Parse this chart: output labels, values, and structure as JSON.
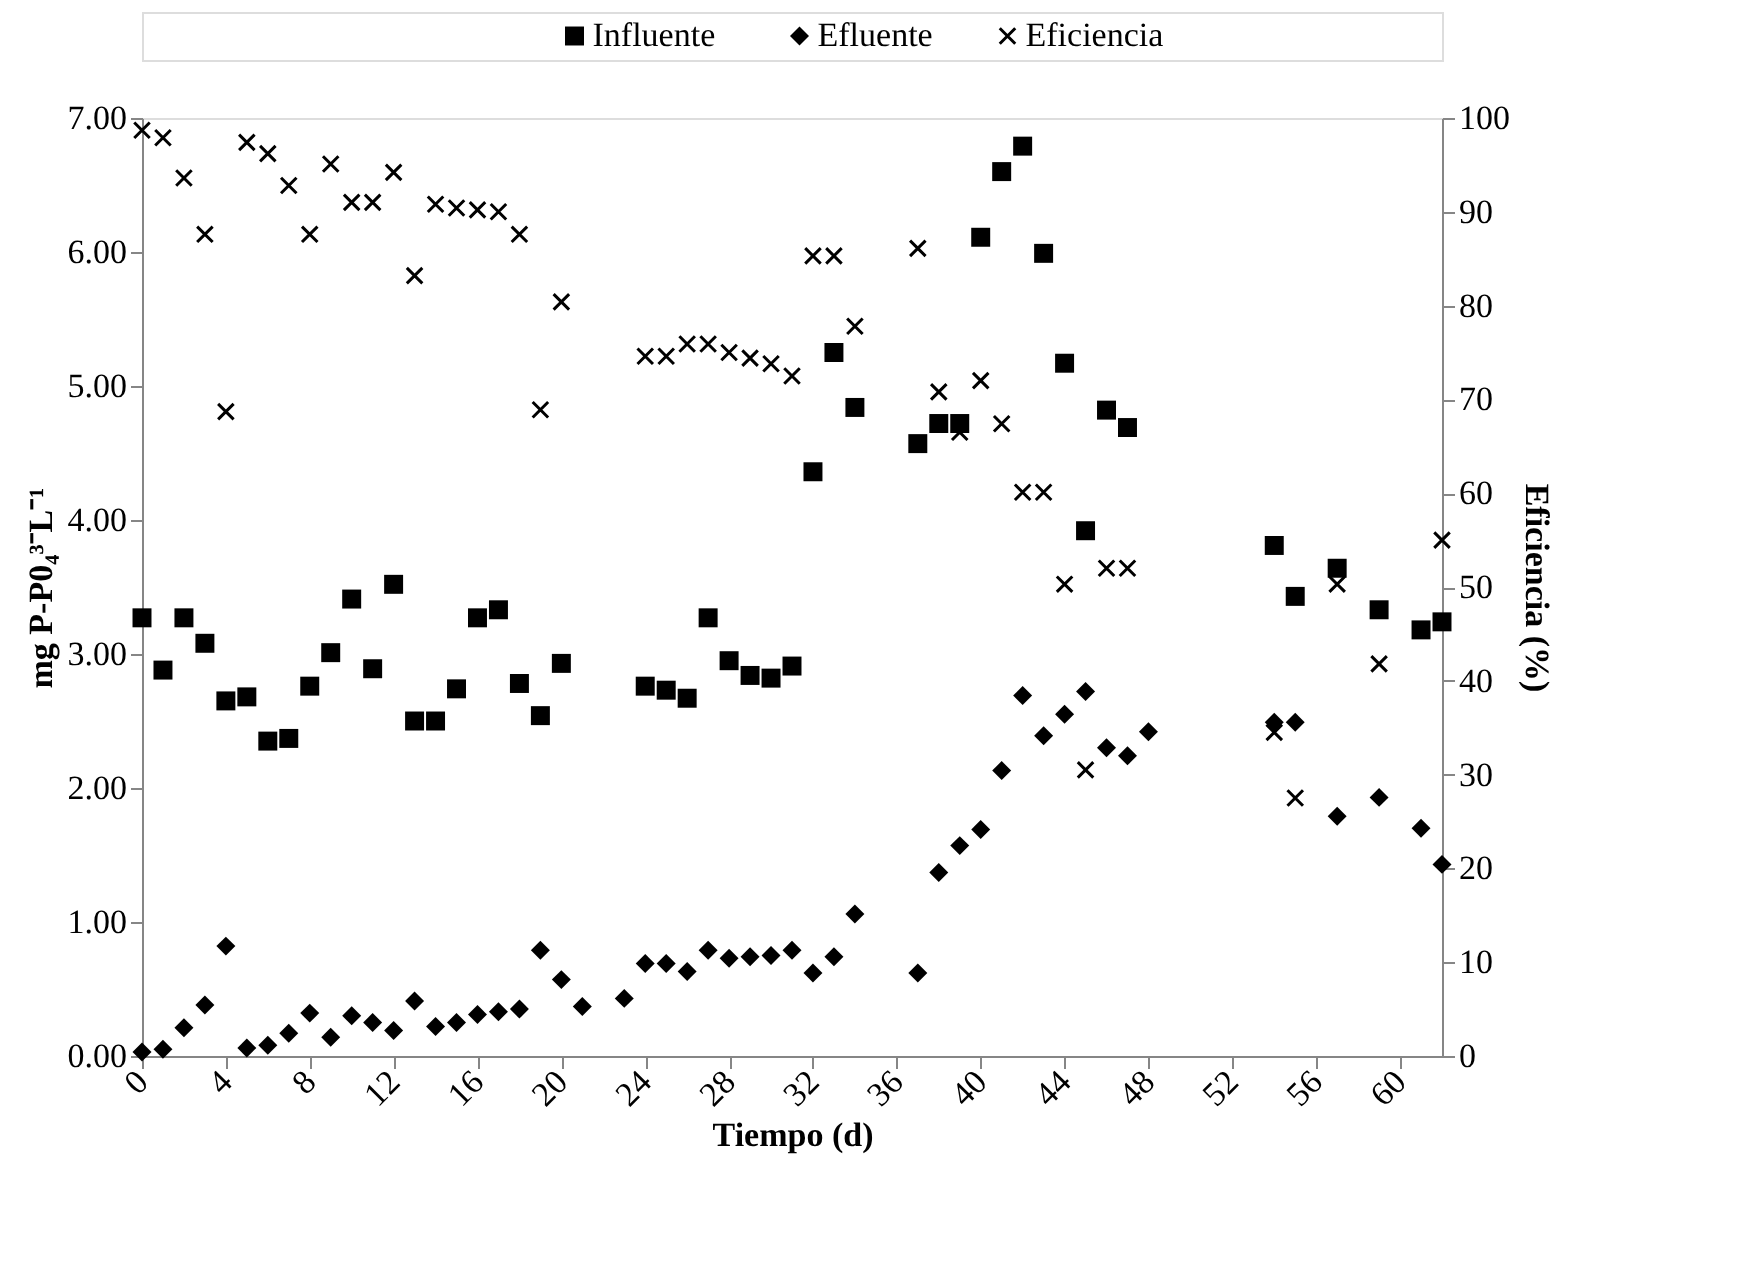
{
  "chart_data": {
    "type": "scatter",
    "xlabel": "Tiempo (d)",
    "ylabel": "mg P-P0₄³⁻L⁻¹",
    "y2label": "Eficiencia (%)",
    "xlim": [
      0,
      62
    ],
    "xticks": [
      0,
      4,
      8,
      12,
      16,
      20,
      24,
      28,
      32,
      36,
      40,
      44,
      48,
      52,
      56,
      60
    ],
    "ylim": [
      0,
      7
    ],
    "yticks": [
      {
        "value": 0,
        "label": "0.00"
      },
      {
        "value": 1,
        "label": "1.00"
      },
      {
        "value": 2,
        "label": "2.00"
      },
      {
        "value": 3,
        "label": "3.00"
      },
      {
        "value": 4,
        "label": "4.00"
      },
      {
        "value": 5,
        "label": "5.00"
      },
      {
        "value": 6,
        "label": "6.00"
      },
      {
        "value": 7,
        "label": "7.00"
      }
    ],
    "y2lim": [
      0,
      100
    ],
    "y2ticks": [
      0,
      10,
      20,
      30,
      40,
      50,
      60,
      70,
      80,
      90,
      100
    ],
    "grid": false,
    "legend": "top",
    "series": [
      {
        "name": "Influente",
        "color": "#000000",
        "marker": "square",
        "x": [
          0,
          1,
          2,
          3,
          4,
          5,
          6,
          7,
          8,
          9,
          10,
          11,
          12,
          13,
          14,
          15,
          16,
          17,
          18,
          19,
          20,
          24,
          25,
          26,
          27,
          28,
          29,
          30,
          31,
          32,
          33,
          34,
          37,
          38,
          39,
          40,
          41,
          42,
          43,
          44,
          45,
          46,
          47,
          54,
          55,
          57,
          59,
          61,
          62
        ],
        "values": [
          3.27,
          2.88,
          3.27,
          3.08,
          2.65,
          2.68,
          2.35,
          2.37,
          2.76,
          3.01,
          3.41,
          2.89,
          3.52,
          2.5,
          2.5,
          2.74,
          3.27,
          3.33,
          2.78,
          2.54,
          2.93,
          2.76,
          2.73,
          2.67,
          3.27,
          2.95,
          2.84,
          2.82,
          2.91,
          4.36,
          5.25,
          4.84,
          4.57,
          4.72,
          4.72,
          6.11,
          6.6,
          6.79,
          5.99,
          5.17,
          3.92,
          4.82,
          4.69,
          3.81,
          3.43,
          3.64,
          3.33,
          3.18,
          3.24
        ]
      },
      {
        "name": "Efluente",
        "color": "#000000",
        "marker": "diamond",
        "x": [
          0,
          1,
          2,
          3,
          4,
          5,
          6,
          7,
          8,
          9,
          10,
          11,
          12,
          13,
          14,
          15,
          16,
          17,
          18,
          19,
          20,
          21,
          23,
          24,
          25,
          26,
          27,
          28,
          29,
          30,
          31,
          32,
          33,
          34,
          37,
          38,
          39,
          40,
          41,
          42,
          43,
          44,
          45,
          46,
          47,
          48,
          54,
          55,
          57,
          59,
          61,
          62
        ],
        "values": [
          0.03,
          0.05,
          0.21,
          0.38,
          0.82,
          0.06,
          0.08,
          0.17,
          0.32,
          0.14,
          0.3,
          0.25,
          0.19,
          0.41,
          0.22,
          0.25,
          0.31,
          0.33,
          0.35,
          0.79,
          0.57,
          0.37,
          0.43,
          0.69,
          0.69,
          0.63,
          0.79,
          0.73,
          0.74,
          0.75,
          0.79,
          0.62,
          0.74,
          1.06,
          0.62,
          1.37,
          1.57,
          1.69,
          2.13,
          2.69,
          2.39,
          2.55,
          2.72,
          2.3,
          2.24,
          2.42,
          2.49,
          2.49,
          1.79,
          1.93,
          1.7,
          1.43
        ]
      },
      {
        "name": "Eficiencia",
        "color": "#000000",
        "marker": "cross",
        "axis": "y2",
        "x": [
          0,
          1,
          2,
          3,
          4,
          5,
          6,
          7,
          8,
          9,
          10,
          11,
          12,
          13,
          14,
          15,
          16,
          17,
          18,
          19,
          20,
          24,
          25,
          26,
          27,
          28,
          29,
          30,
          31,
          32,
          33,
          34,
          37,
          38,
          39,
          40,
          41,
          42,
          43,
          44,
          45,
          46,
          47,
          54,
          55,
          57,
          59,
          62
        ],
        "values": [
          98.7,
          97.9,
          93.6,
          87.6,
          68.7,
          97.4,
          96.2,
          92.8,
          87.6,
          95.1,
          91,
          91,
          94.2,
          83.2,
          90.8,
          90.4,
          90.2,
          90,
          87.6,
          68.9,
          80.4,
          74.6,
          74.6,
          75.9,
          75.9,
          75,
          74.4,
          73.8,
          72.5,
          85.3,
          85.3,
          77.8,
          86.1,
          70.8,
          66.5,
          72,
          67.4,
          60.1,
          60.1,
          50.3,
          30.5,
          52,
          52,
          34.5,
          27.5,
          50.3,
          41.8,
          55
        ]
      }
    ]
  }
}
